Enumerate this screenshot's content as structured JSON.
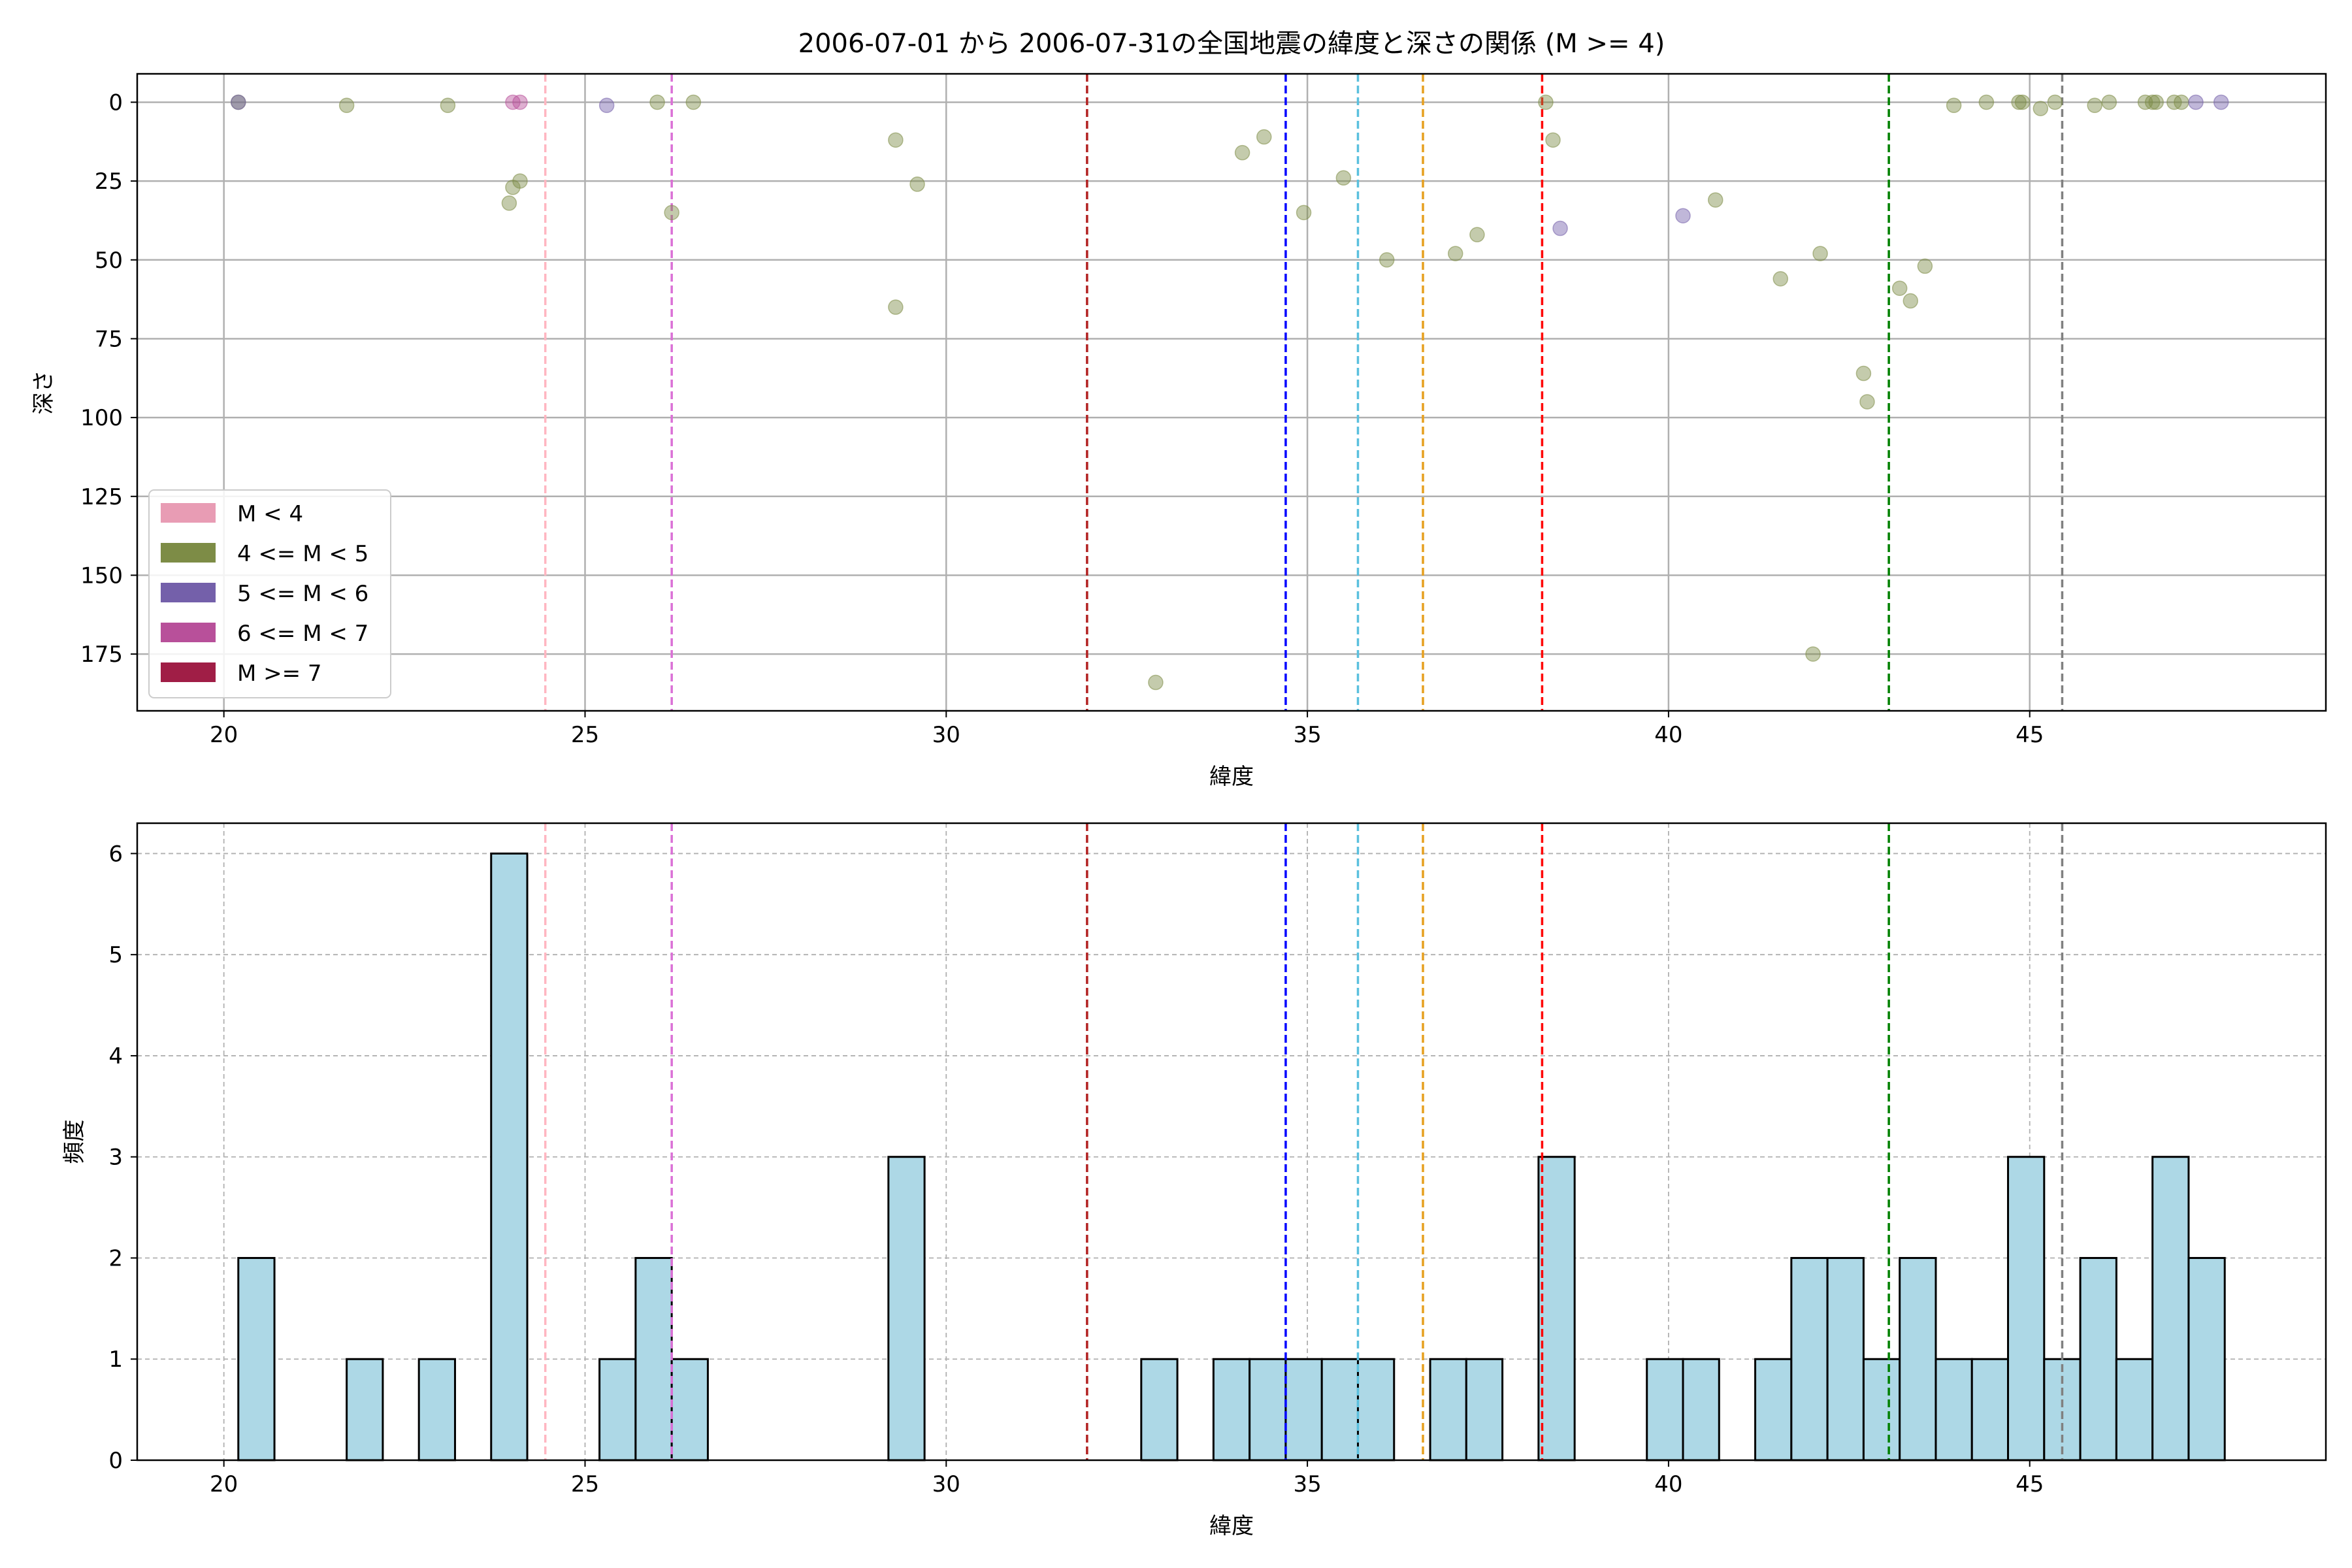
{
  "figure": {
    "title": "2006-07-01 から 2006-07-31の全国地震の緯度と深さの関係 (M >= 4)"
  },
  "legend": {
    "placement": "lower-left",
    "items": [
      {
        "label": "M < 4",
        "color": "#e89cb4"
      },
      {
        "label": "4 <= M < 5",
        "color": "#7d8c46"
      },
      {
        "label": "5 <= M < 6",
        "color": "#7460aa"
      },
      {
        "label": "6 <= M < 7",
        "color": "#b8509a"
      },
      {
        "label": "M >= 7",
        "color": "#a01e46"
      }
    ]
  },
  "chart_data": [
    {
      "type": "scatter",
      "xlabel": "緯度",
      "ylabel": "深さ",
      "xlim": [
        18.8,
        49.1
      ],
      "ylim": [
        193,
        -9
      ],
      "y_inverted": true,
      "xticks": [
        20,
        25,
        30,
        35,
        40,
        45
      ],
      "yticks": [
        0,
        25,
        50,
        75,
        100,
        125,
        150,
        175
      ],
      "grid": true,
      "point_opacity": 0.45,
      "series": [
        {
          "name": "4 <= M < 5",
          "color": "#7d8c46",
          "points": [
            [
              20.2,
              0
            ],
            [
              21.7,
              1
            ],
            [
              23.1,
              1
            ],
            [
              23.95,
              32
            ],
            [
              24.0,
              27
            ],
            [
              24.1,
              25
            ],
            [
              26.0,
              0
            ],
            [
              26.2,
              35
            ],
            [
              26.5,
              0
            ],
            [
              29.3,
              12
            ],
            [
              29.3,
              65
            ],
            [
              29.6,
              26
            ],
            [
              32.9,
              184
            ],
            [
              34.1,
              16
            ],
            [
              34.4,
              11
            ],
            [
              34.95,
              35
            ],
            [
              35.5,
              24
            ],
            [
              36.1,
              50
            ],
            [
              37.05,
              48
            ],
            [
              37.35,
              42
            ],
            [
              38.3,
              0
            ],
            [
              38.4,
              12
            ],
            [
              40.65,
              31
            ],
            [
              41.55,
              56
            ],
            [
              42.0,
              175
            ],
            [
              42.1,
              48
            ],
            [
              42.7,
              86
            ],
            [
              42.75,
              95
            ],
            [
              43.2,
              59
            ],
            [
              43.35,
              63
            ],
            [
              43.55,
              52
            ],
            [
              43.95,
              1
            ],
            [
              44.4,
              0
            ],
            [
              44.85,
              0
            ],
            [
              44.9,
              0
            ],
            [
              45.15,
              2
            ],
            [
              45.35,
              0
            ],
            [
              45.9,
              1
            ],
            [
              46.1,
              0
            ],
            [
              46.6,
              0
            ],
            [
              46.7,
              0
            ],
            [
              46.75,
              0
            ],
            [
              47.0,
              0
            ],
            [
              47.1,
              0
            ]
          ]
        },
        {
          "name": "5 <= M < 6",
          "color": "#7460aa",
          "points": [
            [
              20.2,
              0
            ],
            [
              25.3,
              1
            ],
            [
              38.5,
              40
            ],
            [
              40.2,
              36
            ],
            [
              47.3,
              0
            ],
            [
              47.65,
              0
            ]
          ]
        },
        {
          "name": "6 <= M < 7",
          "color": "#b8509a",
          "points": [
            [
              24.0,
              0
            ],
            [
              24.1,
              0
            ]
          ]
        }
      ],
      "vlines": [
        {
          "x": 24.45,
          "color": "#ffb6c1"
        },
        {
          "x": 26.2,
          "color": "#da70d6"
        },
        {
          "x": 31.95,
          "color": "#b22222"
        },
        {
          "x": 34.7,
          "color": "#0000ff"
        },
        {
          "x": 35.7,
          "color": "#5bc0de"
        },
        {
          "x": 36.6,
          "color": "#e6a020"
        },
        {
          "x": 38.25,
          "color": "#ff0000"
        },
        {
          "x": 43.05,
          "color": "#008000"
        },
        {
          "x": 45.45,
          "color": "#808080"
        }
      ]
    },
    {
      "type": "bar",
      "xlabel": "緯度",
      "ylabel": "頻度",
      "xlim": [
        18.8,
        49.1
      ],
      "ylim": [
        0,
        6.3
      ],
      "xticks": [
        20,
        25,
        30,
        35,
        40,
        45
      ],
      "yticks": [
        0,
        1,
        2,
        3,
        4,
        5,
        6
      ],
      "grid": true,
      "bar_color": "#add8e6",
      "bin_width": 0.5,
      "bins": [
        {
          "x0": 20.2,
          "count": 2
        },
        {
          "x0": 21.7,
          "count": 1
        },
        {
          "x0": 22.7,
          "count": 1
        },
        {
          "x0": 23.7,
          "count": 6
        },
        {
          "x0": 25.2,
          "count": 1
        },
        {
          "x0": 25.7,
          "count": 2
        },
        {
          "x0": 26.2,
          "count": 1
        },
        {
          "x0": 29.2,
          "count": 3
        },
        {
          "x0": 32.7,
          "count": 1
        },
        {
          "x0": 33.7,
          "count": 1
        },
        {
          "x0": 34.2,
          "count": 1
        },
        {
          "x0": 34.7,
          "count": 1
        },
        {
          "x0": 35.2,
          "count": 1
        },
        {
          "x0": 35.7,
          "count": 1
        },
        {
          "x0": 36.7,
          "count": 1
        },
        {
          "x0": 37.2,
          "count": 1
        },
        {
          "x0": 38.2,
          "count": 3
        },
        {
          "x0": 39.7,
          "count": 1
        },
        {
          "x0": 40.2,
          "count": 1
        },
        {
          "x0": 41.2,
          "count": 1
        },
        {
          "x0": 41.7,
          "count": 2
        },
        {
          "x0": 42.2,
          "count": 2
        },
        {
          "x0": 42.7,
          "count": 1
        },
        {
          "x0": 43.2,
          "count": 2
        },
        {
          "x0": 43.7,
          "count": 1
        },
        {
          "x0": 44.2,
          "count": 1
        },
        {
          "x0": 44.7,
          "count": 3
        },
        {
          "x0": 45.2,
          "count": 1
        },
        {
          "x0": 45.7,
          "count": 2
        },
        {
          "x0": 46.2,
          "count": 1
        },
        {
          "x0": 46.7,
          "count": 3
        },
        {
          "x0": 47.2,
          "count": 2
        }
      ],
      "vlines": [
        {
          "x": 24.45,
          "color": "#ffb6c1"
        },
        {
          "x": 26.2,
          "color": "#da70d6"
        },
        {
          "x": 31.95,
          "color": "#b22222"
        },
        {
          "x": 34.7,
          "color": "#0000ff"
        },
        {
          "x": 35.7,
          "color": "#5bc0de"
        },
        {
          "x": 36.6,
          "color": "#e6a020"
        },
        {
          "x": 38.25,
          "color": "#ff0000"
        },
        {
          "x": 43.05,
          "color": "#008000"
        },
        {
          "x": 45.45,
          "color": "#808080"
        }
      ]
    }
  ]
}
